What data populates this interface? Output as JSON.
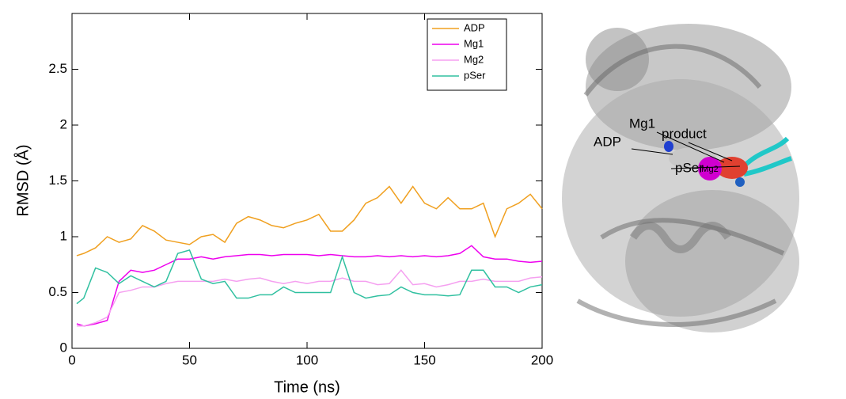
{
  "chart_data": {
    "type": "line",
    "xlabel": "Time (ns)",
    "ylabel": "RMSD (Å)",
    "x": [
      2,
      5,
      10,
      15,
      20,
      25,
      30,
      35,
      40,
      45,
      50,
      55,
      60,
      65,
      70,
      75,
      80,
      85,
      90,
      95,
      100,
      105,
      110,
      115,
      120,
      125,
      130,
      135,
      140,
      145,
      150,
      155,
      160,
      165,
      170,
      175,
      180,
      185,
      190,
      195,
      200
    ],
    "series": [
      {
        "name": "ADP",
        "color": "#f0a020",
        "values": [
          0.83,
          0.85,
          0.9,
          1.0,
          0.95,
          0.98,
          1.1,
          1.05,
          0.97,
          0.95,
          0.93,
          1.0,
          1.02,
          0.95,
          1.12,
          1.18,
          1.15,
          1.1,
          1.08,
          1.12,
          1.15,
          1.2,
          1.05,
          1.05,
          1.15,
          1.3,
          1.35,
          1.45,
          1.3,
          1.45,
          1.3,
          1.25,
          1.35,
          1.25,
          1.25,
          1.3,
          1.0,
          1.25,
          1.3,
          1.38,
          1.25
        ]
      },
      {
        "name": "Mg1",
        "color": "#ee00ee",
        "values": [
          0.22,
          0.2,
          0.22,
          0.25,
          0.6,
          0.7,
          0.68,
          0.7,
          0.75,
          0.8,
          0.8,
          0.82,
          0.8,
          0.82,
          0.83,
          0.84,
          0.84,
          0.83,
          0.84,
          0.84,
          0.84,
          0.83,
          0.84,
          0.83,
          0.82,
          0.82,
          0.83,
          0.82,
          0.83,
          0.82,
          0.83,
          0.82,
          0.83,
          0.85,
          0.92,
          0.82,
          0.8,
          0.8,
          0.78,
          0.77,
          0.78
        ]
      },
      {
        "name": "Mg2",
        "color": "#f5a0f0",
        "values": [
          0.2,
          0.2,
          0.23,
          0.28,
          0.5,
          0.52,
          0.55,
          0.55,
          0.58,
          0.6,
          0.6,
          0.6,
          0.6,
          0.62,
          0.6,
          0.62,
          0.63,
          0.6,
          0.58,
          0.6,
          0.58,
          0.6,
          0.6,
          0.63,
          0.6,
          0.6,
          0.57,
          0.58,
          0.7,
          0.57,
          0.58,
          0.55,
          0.57,
          0.6,
          0.6,
          0.62,
          0.6,
          0.6,
          0.6,
          0.63,
          0.64
        ]
      },
      {
        "name": "pSer",
        "color": "#30c0a0",
        "values": [
          0.4,
          0.45,
          0.72,
          0.68,
          0.58,
          0.65,
          0.6,
          0.55,
          0.6,
          0.85,
          0.88,
          0.62,
          0.58,
          0.6,
          0.45,
          0.45,
          0.48,
          0.48,
          0.55,
          0.5,
          0.5,
          0.5,
          0.5,
          0.82,
          0.5,
          0.45,
          0.47,
          0.48,
          0.55,
          0.5,
          0.48,
          0.48,
          0.47,
          0.48,
          0.7,
          0.7,
          0.55,
          0.55,
          0.5,
          0.55,
          0.57
        ]
      }
    ],
    "xlim": [
      0,
      200
    ],
    "xticks": [
      0,
      50,
      100,
      150,
      200
    ],
    "ylim": [
      0,
      3
    ],
    "yticks": [
      0,
      0.5,
      1,
      1.5,
      2,
      2.5
    ],
    "legend": "upper right"
  },
  "figure_labels": {
    "adp": "ADP",
    "mg1": "Mg1",
    "mg2": "Mg2",
    "product": "product",
    "pser": "pSer"
  }
}
